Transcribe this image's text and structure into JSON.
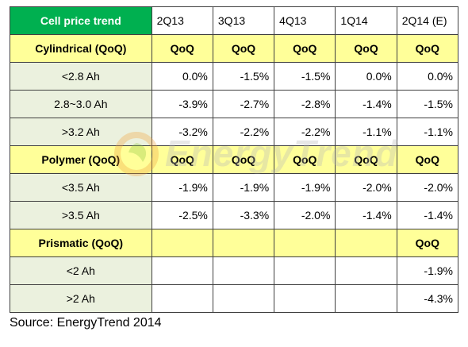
{
  "header": {
    "label": "Cell price trend",
    "periods": [
      "2Q13",
      "3Q13",
      "4Q13",
      "1Q14",
      "2Q14 (E)"
    ]
  },
  "cylindrical": {
    "title": "Cylindrical (QoQ)",
    "qoq": [
      "QoQ",
      "QoQ",
      "QoQ",
      "QoQ",
      "QoQ"
    ],
    "rows": [
      {
        "label": "<2.8 Ah",
        "values": [
          "0.0%",
          "-1.5%",
          "-1.5%",
          "0.0%",
          "0.0%"
        ]
      },
      {
        "label": "2.8~3.0 Ah",
        "values": [
          "-3.9%",
          "-2.7%",
          "-2.8%",
          "-1.4%",
          "-1.5%"
        ]
      },
      {
        "label": ">3.2 Ah",
        "values": [
          "-3.2%",
          "-2.2%",
          "-2.2%",
          "-1.1%",
          "-1.1%"
        ]
      }
    ]
  },
  "polymer": {
    "title": "Polymer (QoQ)",
    "qoq": [
      "QoQ",
      "QoQ",
      "QoQ",
      "QoQ",
      "QoQ"
    ],
    "rows": [
      {
        "label": "<3.5 Ah",
        "values": [
          "-1.9%",
          "-1.9%",
          "-1.9%",
          "-2.0%",
          "-2.0%"
        ]
      },
      {
        "label": ">3.5  Ah",
        "values": [
          "-2.5%",
          "-3.3%",
          "-2.0%",
          "-1.4%",
          "-1.4%"
        ]
      }
    ]
  },
  "prismatic": {
    "title": "Prismatic (QoQ)",
    "qoq": [
      "",
      "",
      "",
      "",
      "QoQ"
    ],
    "rows": [
      {
        "label": "<2 Ah",
        "values": [
          "",
          "",
          "",
          "",
          "-1.9%"
        ]
      },
      {
        "label": ">2 Ah",
        "values": [
          "",
          "",
          "",
          "",
          "-4.3%"
        ]
      }
    ]
  },
  "watermark": {
    "text": "EnergyTrend"
  },
  "source": "Source: EnergyTrend 2014",
  "colors": {
    "header_green": "#00b050",
    "section_yellow": "#ffff99",
    "label_green": "#ebf1de"
  }
}
